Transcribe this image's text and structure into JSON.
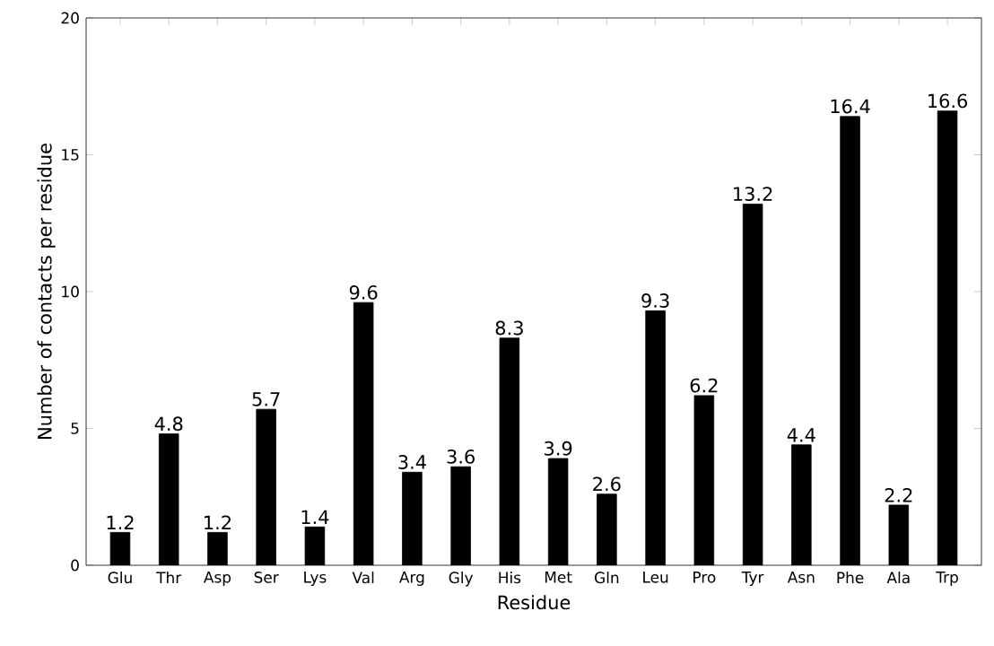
{
  "chart_data": {
    "type": "bar",
    "xlabel": "Residue",
    "ylabel": "Number of contacts per residue",
    "categories": [
      "Glu",
      "Thr",
      "Asp",
      "Ser",
      "Lys",
      "Val",
      "Arg",
      "Gly",
      "His",
      "Met",
      "Gln",
      "Leu",
      "Pro",
      "Tyr",
      "Asn",
      "Phe",
      "Ala",
      "Trp"
    ],
    "values": [
      1.2,
      4.8,
      1.2,
      5.7,
      1.4,
      9.6,
      3.4,
      3.6,
      8.3,
      3.9,
      2.6,
      9.3,
      6.2,
      13.2,
      4.4,
      16.4,
      2.2,
      16.6
    ],
    "color": "#000000",
    "ylim": [
      0,
      20
    ],
    "yticks": [
      0,
      5,
      10,
      15,
      20
    ],
    "data_labels": true
  }
}
